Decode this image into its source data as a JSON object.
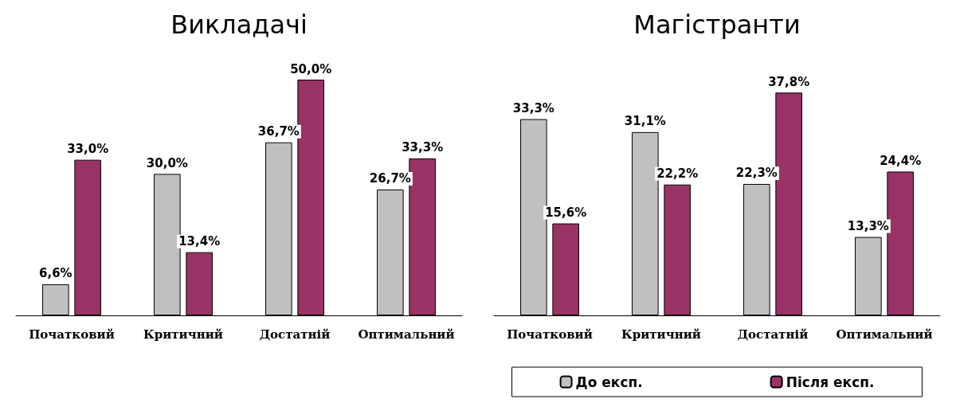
{
  "chart_data": [
    {
      "type": "bar",
      "title": "Викладачі",
      "categories": [
        "Початковий",
        "Критичний",
        "Достатній",
        "Оптимальний"
      ],
      "series": [
        {
          "color": "#c0c0c0",
          "values": [
            6.6,
            30.0,
            36.7,
            26.7
          ],
          "value_labels": [
            "6,6%",
            "30,0%",
            "36,7%",
            "26,7%"
          ]
        },
        {
          "color": "#993366",
          "values": [
            33.0,
            13.4,
            50.0,
            33.3
          ],
          "value_labels": [
            "33,0%",
            "13,4%",
            "50,0%",
            "33,3%"
          ]
        }
      ]
    },
    {
      "type": "bar",
      "title": "Магістранти",
      "categories": [
        "Початковий",
        "Критичний",
        "Достатній",
        "Оптимальний"
      ],
      "legend": "bottom",
      "series": [
        {
          "name": "До експ.",
          "color": "#c0c0c0",
          "values": [
            33.3,
            31.1,
            22.3,
            13.3
          ],
          "value_labels": [
            "33,3%",
            "31,1%",
            "22,3%",
            "13,3%"
          ]
        },
        {
          "name": "Після експ.",
          "color": "#993366",
          "values": [
            15.6,
            22.2,
            37.8,
            24.4
          ],
          "value_labels": [
            "15,6%",
            "22,2%",
            "37,8%",
            "24,4%"
          ]
        }
      ]
    }
  ]
}
